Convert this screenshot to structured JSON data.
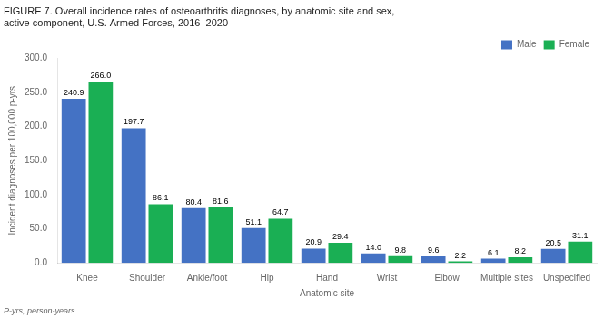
{
  "chart_data": {
    "type": "bar",
    "title": "FIGURE 7. Overall incidence rates of osteoarthritis diagnoses, by anatomic site and sex,\nactive component, U.S. Armed Forces, 2016–2020",
    "footnote": "P-yrs, person-years.",
    "xlabel": "Anatomic site",
    "ylabel": "Incident diagnoses per 100,000 p-yrs",
    "categories": [
      "Knee",
      "Shoulder",
      "Ankle/foot",
      "Hip",
      "Hand",
      "Wrist",
      "Elbow",
      "Multiple sites",
      "Unspecified"
    ],
    "series": [
      {
        "name": "Male",
        "color": "#4472C4",
        "values": [
          240.9,
          197.7,
          80.4,
          51.1,
          20.9,
          14.0,
          9.6,
          6.1,
          20.5
        ],
        "value_labels": [
          "240.9",
          "197.7",
          "80.4",
          "51.1",
          "20.9",
          "14.0",
          "9.6",
          "6.1",
          "20.5"
        ]
      },
      {
        "name": "Female",
        "color": "#1AAF54",
        "values": [
          266.0,
          86.1,
          81.6,
          64.7,
          29.4,
          9.8,
          2.2,
          8.2,
          31.1
        ],
        "value_labels": [
          "266.0",
          "86.1",
          "81.6",
          "64.7",
          "29.4",
          "9.8",
          "2.2",
          "8.2",
          "31.1"
        ]
      }
    ],
    "ylim": [
      0,
      300
    ],
    "yticks": [
      {
        "value": 0,
        "label": "0.0"
      },
      {
        "value": 50,
        "label": "50.0"
      },
      {
        "value": 100,
        "label": "100.0"
      },
      {
        "value": 150,
        "label": "150.0"
      },
      {
        "value": 200,
        "label": "200.0"
      },
      {
        "value": 250,
        "label": "250.0"
      },
      {
        "value": 300,
        "label": "300.0"
      }
    ],
    "grid": false,
    "legend": "upper right",
    "data_labels": true
  }
}
